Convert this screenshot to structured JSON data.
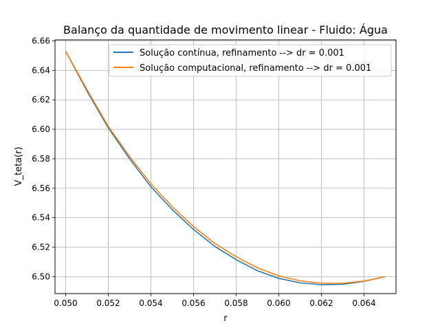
{
  "chart_data": {
    "type": "line",
    "title": "Balanço da quantidade de movimento linear - Fluido: Água",
    "xlabel": "r",
    "ylabel": "V_teta(r)",
    "xlim": [
      0.0495,
      0.0655
    ],
    "ylim": [
      6.4885,
      6.6607
    ],
    "x_ticks": [
      "0.050",
      "0.052",
      "0.054",
      "0.056",
      "0.058",
      "0.060",
      "0.062",
      "0.064"
    ],
    "x_tick_values": [
      0.05,
      0.052,
      0.054,
      0.056,
      0.058,
      0.06,
      0.062,
      0.064
    ],
    "y_ticks": [
      "6.50",
      "6.52",
      "6.54",
      "6.56",
      "6.58",
      "6.60",
      "6.62",
      "6.64",
      "6.66"
    ],
    "y_tick_values": [
      6.5,
      6.52,
      6.54,
      6.56,
      6.58,
      6.6,
      6.62,
      6.64,
      6.66
    ],
    "grid": true,
    "legend_position": "top-right",
    "x": [
      0.05,
      0.051,
      0.052,
      0.053,
      0.054,
      0.055,
      0.056,
      0.057,
      0.058,
      0.059,
      0.06,
      0.061,
      0.062,
      0.063,
      0.064,
      0.065
    ],
    "series": [
      {
        "name": "Solução contínua, refinamento --> dr = 0.001",
        "color": "#1f77b4",
        "values": [
          6.653,
          6.626,
          6.601,
          6.58,
          6.561,
          6.5455,
          6.532,
          6.5205,
          6.5115,
          6.504,
          6.4988,
          6.4958,
          6.4945,
          6.4948,
          6.4968,
          6.5
        ]
      },
      {
        "name": "Solução computacional, refinamento --> dr = 0.001",
        "color": "#ff7f0e",
        "values": [
          6.653,
          6.627,
          6.602,
          6.5815,
          6.563,
          6.5475,
          6.534,
          6.5225,
          6.5135,
          6.506,
          6.5005,
          6.4972,
          6.4955,
          6.4955,
          6.497,
          6.5
        ]
      }
    ]
  }
}
